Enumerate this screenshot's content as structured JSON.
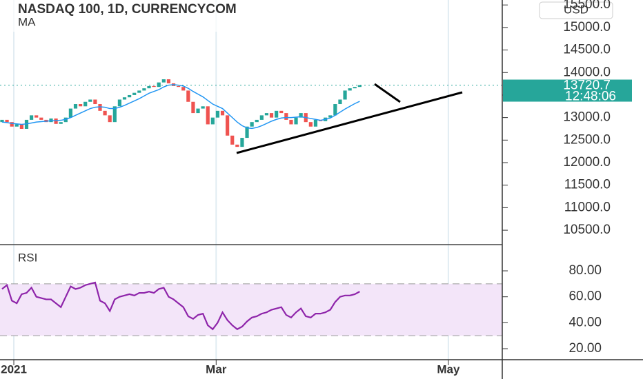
{
  "chart_data": [
    {
      "type": "candlestick",
      "title": "NASDAQ 100, 1D, CURRENCYCOM",
      "currency": "USD",
      "last_time": "12:48:06",
      "up_color": "#26a69a",
      "down_color": "#ef5350",
      "open": [
        12900,
        12950,
        12900,
        12800,
        12850,
        12750,
        12950,
        13050,
        13000,
        12950,
        12900,
        12980,
        12860,
        12900,
        13000,
        13200,
        13300,
        13250,
        13350,
        13400,
        13300,
        13150,
        13050,
        12900,
        13250,
        13400,
        13450,
        13500,
        13550,
        13600,
        13650,
        13700,
        13680,
        13780,
        13850,
        13760,
        13700,
        13680,
        13600,
        13350,
        13100,
        13200,
        13250,
        12850,
        13000,
        13150,
        13050,
        12600,
        12400,
        12350,
        12550,
        12800,
        12900,
        12950,
        13050,
        13100,
        13000,
        13150,
        13100,
        12950,
        12850,
        13000,
        13100,
        12900,
        12800,
        12950,
        12920,
        13000,
        13050,
        13300,
        13400,
        13600,
        13650,
        13680
      ],
      "close": [
        12950,
        12900,
        12800,
        12850,
        12750,
        12950,
        13050,
        13000,
        12950,
        12900,
        12980,
        12860,
        12900,
        13000,
        13200,
        13300,
        13250,
        13350,
        13400,
        13300,
        13150,
        13050,
        12900,
        13250,
        13400,
        13450,
        13500,
        13550,
        13600,
        13650,
        13700,
        13680,
        13780,
        13850,
        13760,
        13700,
        13680,
        13600,
        13350,
        13100,
        13200,
        13250,
        12850,
        13000,
        13150,
        13050,
        12600,
        12400,
        12350,
        12550,
        12800,
        12900,
        12950,
        13050,
        13100,
        13000,
        13150,
        13100,
        12950,
        12850,
        13000,
        13100,
        12900,
        12800,
        12950,
        12920,
        13000,
        13050,
        13300,
        13400,
        13600,
        13650,
        13680,
        13720.7
      ],
      "series": [
        {
          "name": "MA",
          "color": "#2196f3",
          "values": [
            12900,
            12890,
            12870,
            12860,
            12850,
            12860,
            12880,
            12900,
            12910,
            12920,
            12930,
            12930,
            12940,
            12960,
            13000,
            13050,
            13100,
            13150,
            13200,
            13230,
            13240,
            13230,
            13200,
            13200,
            13230,
            13270,
            13320,
            13370,
            13420,
            13480,
            13540,
            13580,
            13620,
            13680,
            13720,
            13730,
            13720,
            13700,
            13650,
            13580,
            13520,
            13460,
            13380,
            13300,
            13250,
            13200,
            13100,
            13000,
            12900,
            12820,
            12770,
            12760,
            12780,
            12820,
            12870,
            12920,
            12960,
            12990,
            13000,
            13000,
            13010,
            13020,
            13000,
            12980,
            12960,
            12940,
            12960,
            12990,
            13050,
            13120,
            13190,
            13250,
            13310,
            13360
          ]
        }
      ],
      "xlim": [
        -0.42,
        102.1
      ],
      "xticks": [
        {
          "value": 2.4,
          "label": "2021"
        },
        {
          "value": 43.7,
          "label": "Mar"
        },
        {
          "value": 91.1,
          "label": "May"
        }
      ],
      "ylim": [
        10180,
        15610
      ],
      "yticks": [
        {
          "value": 10500,
          "label": "10500.0"
        },
        {
          "value": 11000,
          "label": "11000.0"
        },
        {
          "value": 11500,
          "label": "11500.0"
        },
        {
          "value": 12000,
          "label": "12000.0"
        },
        {
          "value": 12500,
          "label": "12500.0"
        },
        {
          "value": 13000,
          "label": "13000.0"
        },
        {
          "value": 13500,
          "label": "13500.0"
        },
        {
          "value": 14000,
          "label": "14000.0"
        },
        {
          "value": 14500,
          "label": "14500.0"
        },
        {
          "value": 15000,
          "label": "15000.0"
        },
        {
          "value": 15500,
          "label": "15500.0"
        }
      ]
    },
    {
      "type": "line",
      "title": "RSI",
      "color": "#8e24aa",
      "band": [
        30,
        70
      ],
      "band_color": "#f3e5f9",
      "values": [
        66,
        69,
        57,
        55,
        62,
        63,
        67,
        60,
        59,
        58,
        58,
        55,
        52,
        60,
        68,
        66,
        67,
        69,
        70,
        71,
        57,
        55,
        49,
        58,
        60,
        61,
        62,
        61,
        63,
        63,
        64,
        63,
        66,
        67,
        60,
        58,
        55,
        52,
        45,
        43,
        46,
        47,
        38,
        35,
        40,
        48,
        42,
        38,
        35,
        37,
        41,
        44,
        45,
        47,
        48,
        50,
        51,
        52,
        46,
        44,
        48,
        51,
        45,
        44,
        47,
        47,
        48,
        50,
        56,
        60,
        61,
        61,
        62,
        64
      ],
      "ylim": [
        11.5,
        100.2
      ],
      "yticks": [
        {
          "value": 20,
          "label": "20.00"
        },
        {
          "value": 40,
          "label": "40.00"
        },
        {
          "value": 60,
          "label": "60.00"
        },
        {
          "value": 80,
          "label": "80.00"
        }
      ]
    }
  ]
}
